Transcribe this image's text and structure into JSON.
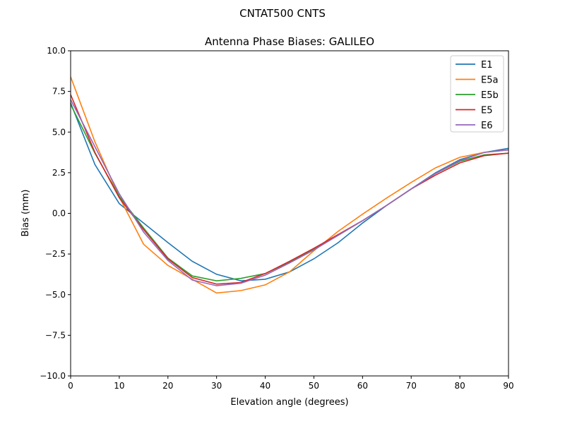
{
  "chart_data": {
    "type": "line",
    "suptitle": "CNTAT500        CNTS",
    "title": "Antenna Phase Biases: GALILEO",
    "xlabel": "Elevation angle (degrees)",
    "ylabel": "Bias (mm)",
    "xlim": [
      0,
      90
    ],
    "ylim": [
      -10,
      10
    ],
    "xticks": [
      0,
      10,
      20,
      30,
      40,
      50,
      60,
      70,
      80,
      90
    ],
    "xtick_labels": [
      "0",
      "10",
      "20",
      "30",
      "40",
      "50",
      "60",
      "70",
      "80",
      "90"
    ],
    "yticks": [
      -10,
      -7.5,
      -5,
      -2.5,
      0,
      2.5,
      5,
      7.5,
      10
    ],
    "ytick_labels": [
      "−10.0",
      "−7.5",
      "−5.0",
      "−2.5",
      "0.0",
      "2.5",
      "5.0",
      "7.5",
      "10.0"
    ],
    "grid": false,
    "legend_position": "top-right",
    "x": [
      0,
      5,
      10,
      15,
      20,
      25,
      30,
      35,
      40,
      45,
      50,
      55,
      60,
      65,
      70,
      75,
      80,
      85,
      90
    ],
    "series": [
      {
        "name": "E1",
        "color": "#1f77b4",
        "values": [
          6.8,
          3.0,
          0.6,
          -0.6,
          -1.8,
          -2.95,
          -3.75,
          -4.15,
          -4.05,
          -3.6,
          -2.8,
          -1.8,
          -0.6,
          0.5,
          1.5,
          2.5,
          3.3,
          3.75,
          4.0
        ]
      },
      {
        "name": "E5a",
        "color": "#ff7f0e",
        "values": [
          8.4,
          4.4,
          1.0,
          -1.9,
          -3.2,
          -4.05,
          -4.9,
          -4.75,
          -4.4,
          -3.6,
          -2.3,
          -1.1,
          -0.05,
          0.95,
          1.9,
          2.8,
          3.45,
          3.75,
          3.9
        ]
      },
      {
        "name": "E5b",
        "color": "#2ca02c",
        "values": [
          6.7,
          3.7,
          1.05,
          -0.9,
          -2.75,
          -3.85,
          -4.15,
          -4.0,
          -3.7,
          -3.0,
          -2.2,
          -1.35,
          -0.45,
          0.5,
          1.5,
          2.45,
          3.2,
          3.6,
          3.7
        ]
      },
      {
        "name": "E5",
        "color": "#d62728",
        "values": [
          7.3,
          3.75,
          0.95,
          -1.0,
          -2.8,
          -3.95,
          -4.35,
          -4.25,
          -3.7,
          -2.95,
          -2.15,
          -1.3,
          -0.45,
          0.5,
          1.5,
          2.35,
          3.1,
          3.55,
          3.7
        ]
      },
      {
        "name": "E6",
        "color": "#9467bd",
        "values": [
          7.0,
          4.1,
          1.2,
          -1.15,
          -2.9,
          -4.1,
          -4.45,
          -4.3,
          -3.8,
          -3.05,
          -2.25,
          -1.35,
          -0.45,
          0.5,
          1.5,
          2.45,
          3.25,
          3.75,
          3.9
        ]
      }
    ]
  }
}
